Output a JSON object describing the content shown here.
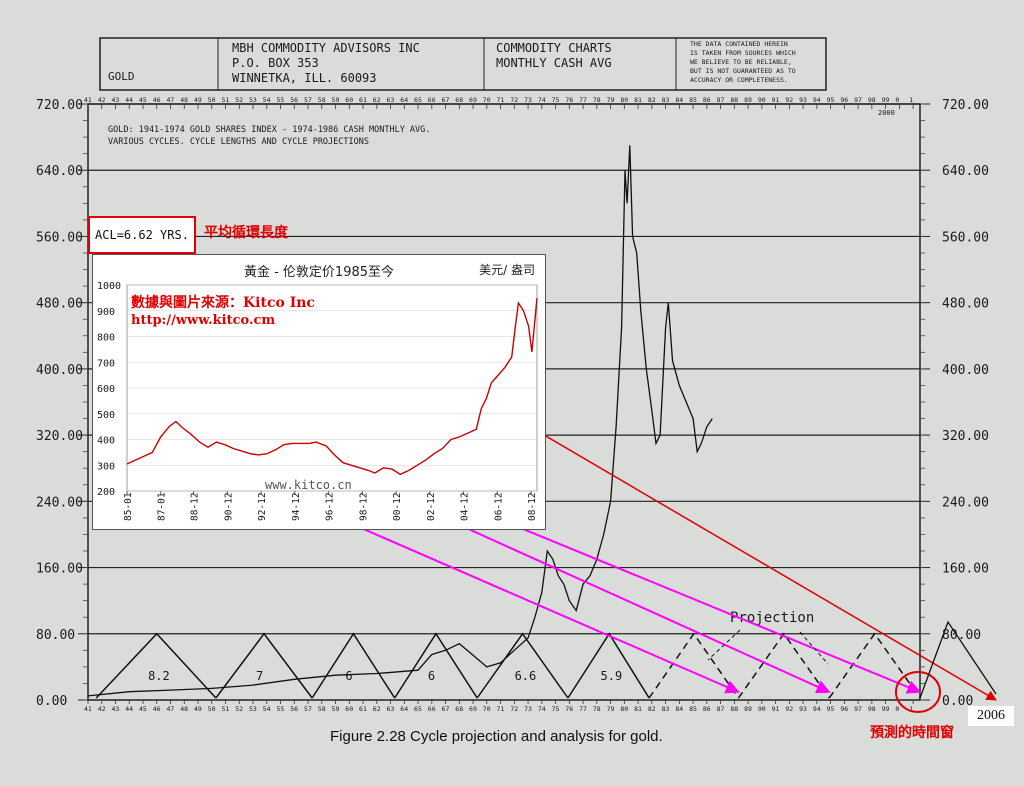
{
  "header": {
    "left_label": "GOLD",
    "company_lines": [
      "MBH  COMMODITY  ADVISORS  INC",
      "P.O.  BOX  353",
      "WINNETKA,  ILL.  60093"
    ],
    "chart_lines": [
      "COMMODITY  CHARTS",
      "MONTHLY CASH AVG"
    ],
    "disclaimer_lines": [
      "THE DATA CONTAINED HEREIN",
      "IS TAKEN FROM SOURCES WHICH",
      "WE BELIEVE TO BE RELIABLE,",
      "BUT IS NOT GUARANTEED AS TO",
      "ACCURACY OR COMPLETENESS."
    ]
  },
  "subtitle_lines": [
    "GOLD: 1941-1974 GOLD SHARES INDEX - 1974-1986 CASH MONTHLY AVG.",
    "VARIOUS CYCLES. CYCLE LENGTHS AND CYCLE PROJECTIONS"
  ],
  "acl_label": "ACL=6.62 YRS.",
  "acl_note": "平均循環長度",
  "projection_label": "Projection",
  "window_note": "預測的時間窗",
  "year_2006": "2006",
  "figure_caption": "Figure 2.28   Cycle projection and analysis for gold.",
  "inset": {
    "title": "黃金  - 伦敦定价1985至今",
    "unit": "美元/ 盎司",
    "source_line1": "數據與圖片來源：Kitco Inc",
    "source_line2": "http://www.kitco.cm",
    "watermark": "www.kitco.cn"
  },
  "colors": {
    "background": "#d9dcd9",
    "line": "#111111",
    "red": "#e00000",
    "magenta": "#ff00ff",
    "inset_line": "#cc0000"
  },
  "chart_data": [
    {
      "type": "line",
      "title": "GOLD: 1941-1974 GOLD SHARES INDEX - 1974-1986 CASH MONTHLY AVG.",
      "y_tick_labels": [
        "0.00",
        "80.00",
        "160.00",
        "240.00",
        "320.00",
        "400.00",
        "480.00",
        "560.00",
        "640.00",
        "720.00"
      ],
      "ylim": [
        0,
        720
      ],
      "x_top_labels": [
        "41",
        "42",
        "43",
        "44",
        "45",
        "46",
        "47",
        "48",
        "49",
        "50",
        "51",
        "52",
        "53",
        "54",
        "55",
        "56",
        "57",
        "58",
        "59",
        "60",
        "61",
        "62",
        "63",
        "64",
        "65",
        "66",
        "67",
        "68",
        "69",
        "70",
        "71",
        "72",
        "73",
        "74",
        "75",
        "76",
        "77",
        "78",
        "79",
        "80",
        "81",
        "82",
        "83",
        "84",
        "85",
        "86",
        "87",
        "88",
        "89",
        "90",
        "91",
        "92",
        "93",
        "94",
        "95",
        "96",
        "97",
        "98",
        "99",
        "0",
        "1"
      ],
      "x_bottom_labels": [
        "41",
        "42",
        "43",
        "44",
        "45",
        "46",
        "47",
        "48",
        "49",
        "50",
        "51",
        "52",
        "53",
        "54",
        "55",
        "56",
        "57",
        "58",
        "59",
        "60",
        "61",
        "62",
        "63",
        "64",
        "65",
        "66",
        "67",
        "68",
        "69",
        "70",
        "71",
        "72",
        "73",
        "74",
        "75",
        "76",
        "77",
        "78",
        "79",
        "80",
        "81",
        "82",
        "83",
        "84",
        "85",
        "86",
        "87",
        "88",
        "89",
        "90",
        "91",
        "92",
        "93",
        "94",
        "95",
        "96",
        "97",
        "98",
        "99",
        "0",
        "1"
      ],
      "year_marker_2000": "2000",
      "cycle_labels": [
        "8.2",
        "7",
        "6",
        "6",
        "6.6",
        "5.9"
      ],
      "cycle_lows": [
        1941.6,
        1950.3,
        1957.3,
        1963.3,
        1969.3,
        1975.9,
        1981.8
      ],
      "cycle_peaks": [
        1946.0,
        1953.8,
        1960.3,
        1966.3,
        1972.6,
        1978.9
      ],
      "projected_lows": [
        1988.3,
        1994.9,
        2001.5
      ],
      "series": [
        {
          "x": [
            1941,
            1944,
            1947,
            1950,
            1953,
            1956,
            1959,
            1962,
            1965,
            1966,
            1967,
            1968,
            1969,
            1970,
            1971,
            1972,
            1973,
            1973.5,
            1974,
            1974.4,
            1974.8,
            1975.2,
            1975.6,
            1976.0,
            1976.5,
            1977.0,
            1977.5,
            1978.0,
            1978.5,
            1979.0,
            1979.4,
            1979.8,
            1980.05,
            1980.2,
            1980.4,
            1980.6,
            1980.9,
            1981.2,
            1981.6,
            1982.0,
            1982.3,
            1982.6,
            1983.0,
            1983.2,
            1983.5,
            1984.0,
            1984.5,
            1985.0,
            1985.3,
            1985.6,
            1986.0,
            1986.4
          ],
          "y": [
            5,
            10,
            12,
            14,
            18,
            25,
            30,
            32,
            36,
            55,
            60,
            68,
            54,
            40,
            45,
            60,
            75,
            100,
            130,
            180,
            170,
            150,
            140,
            120,
            108,
            140,
            150,
            170,
            200,
            240,
            330,
            450,
            640,
            600,
            670,
            560,
            540,
            470,
            400,
            350,
            310,
            320,
            450,
            480,
            410,
            380,
            360,
            340,
            300,
            310,
            330,
            340
          ]
        }
      ]
    },
    {
      "type": "line",
      "title": "黃金  - 伦敦定价1985至今",
      "ylabel": "美元/ 盎司",
      "y_ticks": [
        200,
        300,
        400,
        500,
        600,
        700,
        800,
        900,
        1000
      ],
      "ylim": [
        200,
        1000
      ],
      "x_tick_labels": [
        "85-01",
        "87-01",
        "88-12",
        "90-12",
        "92-12",
        "94-12",
        "96-12",
        "98-12",
        "00-12",
        "02-12",
        "04-12",
        "06-12",
        "08-12"
      ],
      "series": [
        {
          "x": [
            1985.0,
            1985.5,
            1986.0,
            1986.5,
            1987.0,
            1987.5,
            1987.9,
            1988.3,
            1988.8,
            1989.3,
            1989.8,
            1990.3,
            1990.8,
            1991.3,
            1991.8,
            1992.3,
            1992.8,
            1993.3,
            1993.8,
            1994.3,
            1994.8,
            1995.3,
            1995.8,
            1996.2,
            1996.8,
            1997.3,
            1997.8,
            1998.3,
            1998.8,
            1999.3,
            1999.7,
            2000.2,
            2000.7,
            2001.2,
            2001.7,
            2002.2,
            2002.7,
            2003.2,
            2003.7,
            2004.2,
            2004.7,
            2005.2,
            2005.7,
            2006.0,
            2006.3,
            2006.6,
            2007.0,
            2007.4,
            2007.8,
            2008.0,
            2008.2,
            2008.5,
            2008.8,
            2009.0,
            2009.3
          ],
          "y": [
            305,
            320,
            335,
            350,
            410,
            450,
            470,
            445,
            420,
            390,
            370,
            390,
            380,
            365,
            355,
            345,
            340,
            345,
            360,
            380,
            385,
            385,
            385,
            390,
            375,
            340,
            310,
            300,
            290,
            280,
            270,
            290,
            285,
            265,
            280,
            300,
            320,
            345,
            365,
            400,
            410,
            425,
            440,
            520,
            560,
            620,
            650,
            680,
            720,
            830,
            930,
            900,
            840,
            740,
            950
          ]
        }
      ]
    }
  ]
}
